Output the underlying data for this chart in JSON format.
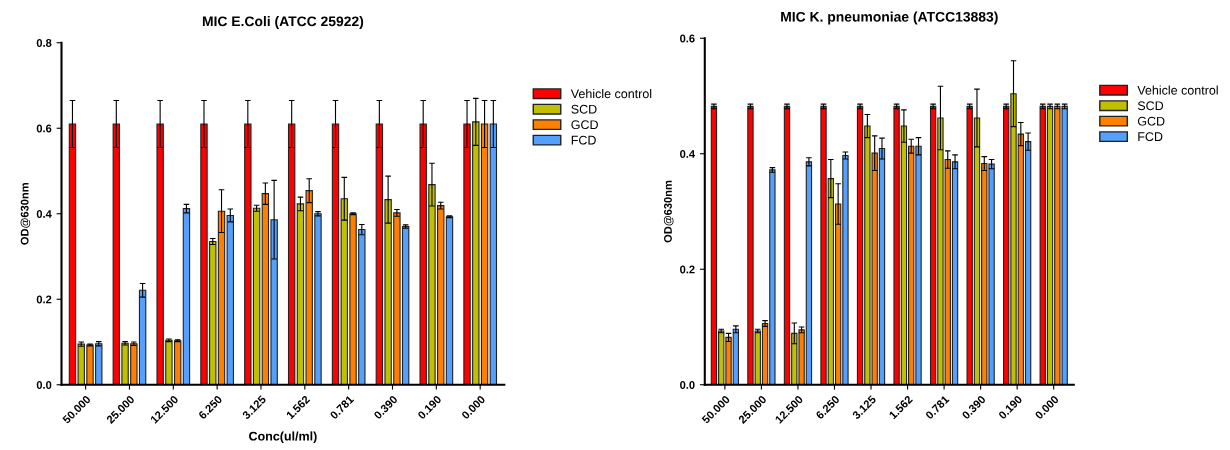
{
  "chart_data": [
    {
      "type": "bar",
      "title": "MIC E.Coli (ATCC 25922)",
      "xlabel": "Conc(ul/ml)",
      "ylabel": "OD@630nm",
      "categories": [
        "50.000",
        "25.000",
        "12.500",
        "6.250",
        "3.125",
        "1.562",
        "0.781",
        "0.390",
        "0.190",
        "0.000"
      ],
      "ylim": [
        0,
        0.8
      ],
      "yticks": [
        {
          "value": 0,
          "label": "0.0"
        },
        {
          "value": 0.2,
          "label": "0.2"
        },
        {
          "value": 0.4,
          "label": "0.4"
        },
        {
          "value": 0.6,
          "label": "0.6"
        },
        {
          "value": 0.8,
          "label": "0.8"
        }
      ],
      "grid": false,
      "legend": "right",
      "series": [
        {
          "name": "Vehicle control",
          "color": "#ff0000",
          "values": [
            0.61,
            0.61,
            0.61,
            0.61,
            0.61,
            0.61,
            0.61,
            0.61,
            0.61,
            0.61
          ],
          "errors": [
            0.055,
            0.055,
            0.055,
            0.055,
            0.055,
            0.055,
            0.055,
            0.055,
            0.055,
            0.055
          ]
        },
        {
          "name": "SCD",
          "color": "#c0c000",
          "values": [
            0.095,
            0.097,
            0.104,
            0.335,
            0.413,
            0.423,
            0.435,
            0.433,
            0.468,
            0.615
          ],
          "errors": [
            0.005,
            0.004,
            0.003,
            0.007,
            0.007,
            0.016,
            0.05,
            0.055,
            0.05,
            0.055
          ]
        },
        {
          "name": "GCD",
          "color": "#ff8000",
          "values": [
            0.093,
            0.096,
            0.103,
            0.406,
            0.447,
            0.454,
            0.4,
            0.402,
            0.419,
            0.61
          ],
          "errors": [
            0.002,
            0.004,
            0.002,
            0.05,
            0.025,
            0.028,
            0.002,
            0.008,
            0.008,
            0.055
          ]
        },
        {
          "name": "FCD",
          "color": "#55a0ff",
          "values": [
            0.096,
            0.221,
            0.412,
            0.396,
            0.386,
            0.4,
            0.363,
            0.37,
            0.393,
            0.61
          ],
          "errors": [
            0.005,
            0.016,
            0.01,
            0.015,
            0.092,
            0.005,
            0.012,
            0.004,
            0.002,
            0.055
          ]
        }
      ]
    },
    {
      "type": "bar",
      "title": "MIC K. pneumoniae (ATCC13883)",
      "ylabel": "OD@630nm",
      "categories": [
        "50.000",
        "25.000",
        "12.500",
        "6.250",
        "3.125",
        "1.562",
        "0.781",
        "0.390",
        "0.190",
        "0.000"
      ],
      "ylim": [
        0,
        0.6
      ],
      "yticks": [
        {
          "value": 0,
          "label": "0.0"
        },
        {
          "value": 0.2,
          "label": "0.2"
        },
        {
          "value": 0.4,
          "label": "0.4"
        },
        {
          "value": 0.6,
          "label": "0.6"
        }
      ],
      "grid": false,
      "legend": "right",
      "series": [
        {
          "name": "Vehicle control",
          "color": "#ff0000",
          "values": [
            0.482,
            0.482,
            0.482,
            0.482,
            0.482,
            0.482,
            0.482,
            0.482,
            0.482,
            0.482
          ],
          "errors": [
            0.004,
            0.004,
            0.004,
            0.004,
            0.004,
            0.004,
            0.004,
            0.004,
            0.004,
            0.004
          ]
        },
        {
          "name": "SCD",
          "color": "#c0c000",
          "values": [
            0.093,
            0.093,
            0.089,
            0.357,
            0.448,
            0.448,
            0.462,
            0.462,
            0.504,
            0.482
          ],
          "errors": [
            0.003,
            0.003,
            0.018,
            0.033,
            0.02,
            0.028,
            0.055,
            0.05,
            0.057,
            0.004
          ]
        },
        {
          "name": "GCD",
          "color": "#ff8000",
          "values": [
            0.082,
            0.106,
            0.095,
            0.313,
            0.401,
            0.413,
            0.39,
            0.383,
            0.434,
            0.482
          ],
          "errors": [
            0.007,
            0.005,
            0.005,
            0.035,
            0.03,
            0.012,
            0.015,
            0.012,
            0.02,
            0.004
          ]
        },
        {
          "name": "FCD",
          "color": "#55a0ff",
          "values": [
            0.096,
            0.372,
            0.386,
            0.397,
            0.409,
            0.413,
            0.386,
            0.382,
            0.421,
            0.482
          ],
          "errors": [
            0.006,
            0.004,
            0.007,
            0.006,
            0.018,
            0.015,
            0.012,
            0.008,
            0.015,
            0.004
          ]
        }
      ]
    }
  ]
}
